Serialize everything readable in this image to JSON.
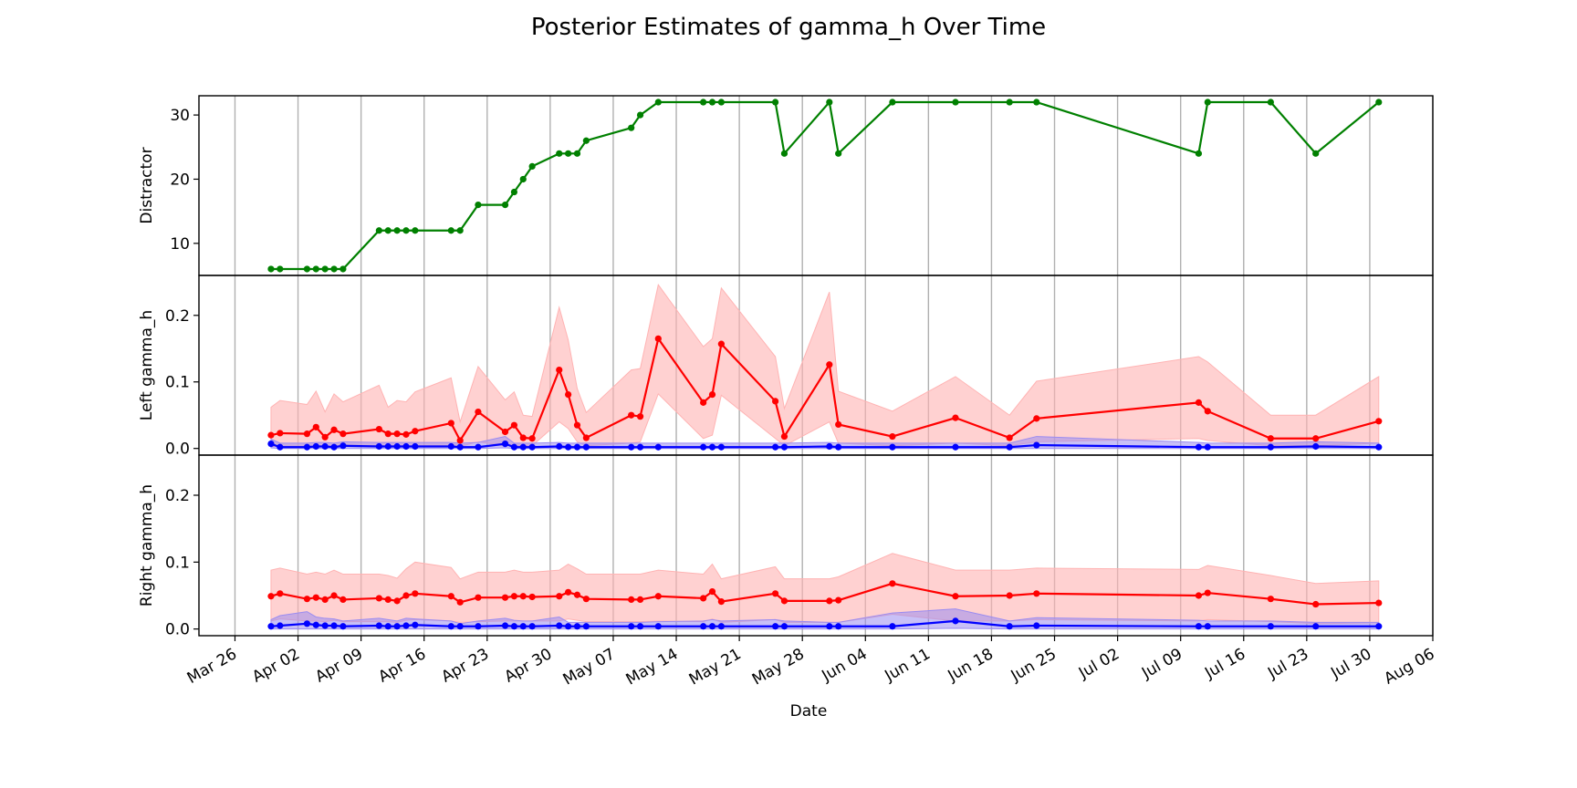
{
  "figure": {
    "title": "Posterior Estimates of gamma_h Over Time",
    "xlabel": "Date"
  },
  "colors": {
    "distractor": "#008000",
    "high": "#ff0000",
    "high_band": "#ffb3b3",
    "low": "#0000ff",
    "low_band": "#9b8cf0"
  },
  "chart_data": {
    "type": "line",
    "x_axis": {
      "scale": "date",
      "range": [
        "2025-03-22",
        "2025-08-06"
      ],
      "tick_labels": [
        "Mar 26",
        "Apr 02",
        "Apr 09",
        "Apr 16",
        "Apr 23",
        "Apr 30",
        "May 07",
        "May 14",
        "May 21",
        "May 28",
        "Jun 04",
        "Jun 11",
        "Jun 18",
        "Jun 25",
        "Jul 02",
        "Jul 09",
        "Jul 16",
        "Jul 23",
        "Jul 30",
        "Aug 06"
      ],
      "tick_dates": [
        "2025-03-26",
        "2025-04-02",
        "2025-04-09",
        "2025-04-16",
        "2025-04-23",
        "2025-04-30",
        "2025-05-07",
        "2025-05-14",
        "2025-05-21",
        "2025-05-28",
        "2025-06-04",
        "2025-06-11",
        "2025-06-18",
        "2025-06-25",
        "2025-07-02",
        "2025-07-09",
        "2025-07-16",
        "2025-07-23",
        "2025-07-30",
        "2025-08-06"
      ],
      "grid": true
    },
    "dates": [
      "2025-03-30",
      "2025-03-31",
      "2025-04-03",
      "2025-04-04",
      "2025-04-05",
      "2025-04-06",
      "2025-04-07",
      "2025-04-11",
      "2025-04-12",
      "2025-04-13",
      "2025-04-14",
      "2025-04-15",
      "2025-04-19",
      "2025-04-20",
      "2025-04-22",
      "2025-04-25",
      "2025-04-26",
      "2025-04-27",
      "2025-04-28",
      "2025-05-01",
      "2025-05-02",
      "2025-05-03",
      "2025-05-04",
      "2025-05-09",
      "2025-05-10",
      "2025-05-12",
      "2025-05-17",
      "2025-05-18",
      "2025-05-19",
      "2025-05-25",
      "2025-05-26",
      "2025-05-31",
      "2025-06-01",
      "2025-06-07",
      "2025-06-14",
      "2025-06-20",
      "2025-06-23",
      "2025-07-11",
      "2025-07-12",
      "2025-07-19",
      "2025-07-24",
      "2025-07-31"
    ],
    "panels": [
      {
        "ylabel": "Distractor",
        "ylim": [
          5,
          33
        ],
        "yticks": [
          10,
          20,
          30
        ],
        "series": [
          {
            "values": [
              6,
              6,
              6,
              6,
              6,
              6,
              6,
              12,
              12,
              12,
              12,
              12,
              12,
              12,
              16,
              16,
              18,
              20,
              22,
              24,
              24,
              24,
              26,
              28,
              30,
              32,
              32,
              32,
              32,
              32,
              24,
              32,
              24,
              32,
              32,
              32,
              32,
              24,
              32,
              32,
              24,
              32
            ]
          }
        ]
      },
      {
        "ylabel": "Left gamma_h",
        "ylim": [
          -0.01,
          0.26
        ],
        "yticks": [
          0.0,
          0.1,
          0.2
        ],
        "series": [
          {
            "values": [
              0.02,
              0.023,
              0.022,
              0.032,
              0.017,
              0.028,
              0.022,
              0.029,
              0.022,
              0.022,
              0.021,
              0.026,
              0.038,
              0.012,
              0.055,
              0.025,
              0.035,
              0.016,
              0.015,
              0.118,
              0.081,
              0.035,
              0.016,
              0.05,
              0.048,
              0.165,
              0.069,
              0.081,
              0.157,
              0.071,
              0.018,
              0.126,
              0.036,
              0.018,
              0.046,
              0.016,
              0.045,
              0.069,
              0.056,
              0.015,
              0.015,
              0.041
            ],
            "lower": [
              0.003,
              0.003,
              0.003,
              0.003,
              0.003,
              0.003,
              0.003,
              0.004,
              0.004,
              0.004,
              0.004,
              0.004,
              0.004,
              0.003,
              0.01,
              0.004,
              0.005,
              0.004,
              0.004,
              0.04,
              0.03,
              0.01,
              0.004,
              0.008,
              0.01,
              0.082,
              0.015,
              0.02,
              0.08,
              0.015,
              0.004,
              0.04,
              0.008,
              0.004,
              0.008,
              0.004,
              0.01,
              0.015,
              0.012,
              0.004,
              0.004,
              0.008
            ],
            "upper": [
              0.062,
              0.072,
              0.066,
              0.086,
              0.055,
              0.082,
              0.07,
              0.095,
              0.062,
              0.072,
              0.07,
              0.085,
              0.106,
              0.04,
              0.123,
              0.073,
              0.085,
              0.05,
              0.048,
              0.212,
              0.163,
              0.09,
              0.054,
              0.118,
              0.12,
              0.246,
              0.153,
              0.165,
              0.241,
              0.138,
              0.06,
              0.235,
              0.086,
              0.056,
              0.108,
              0.05,
              0.101,
              0.138,
              0.13,
              0.05,
              0.05,
              0.108
            ]
          },
          {
            "values": [
              0.007,
              0.002,
              0.002,
              0.003,
              0.003,
              0.002,
              0.004,
              0.003,
              0.003,
              0.003,
              0.003,
              0.003,
              0.003,
              0.002,
              0.002,
              0.007,
              0.002,
              0.002,
              0.002,
              0.003,
              0.002,
              0.002,
              0.002,
              0.002,
              0.002,
              0.002,
              0.002,
              0.002,
              0.002,
              0.002,
              0.002,
              0.003,
              0.002,
              0.002,
              0.002,
              0.002,
              0.005,
              0.002,
              0.002,
              0.002,
              0.003,
              0.002
            ],
            "lower": [
              0.001,
              0.0,
              0.0,
              0.0,
              0.0,
              0.0,
              0.0,
              0.0,
              0.0,
              0.0,
              0.0,
              0.0,
              0.0,
              0.0,
              0.0,
              0.001,
              0.0,
              0.0,
              0.0,
              0.0,
              0.0,
              0.0,
              0.0,
              0.0,
              0.0,
              0.0,
              0.0,
              0.0,
              0.0,
              0.0,
              0.0,
              0.0,
              0.0,
              0.0,
              0.0,
              0.0,
              0.0,
              0.0,
              0.0,
              0.0,
              0.0,
              0.0
            ],
            "upper": [
              0.014,
              0.008,
              0.008,
              0.009,
              0.009,
              0.008,
              0.01,
              0.009,
              0.009,
              0.009,
              0.009,
              0.009,
              0.009,
              0.008,
              0.009,
              0.018,
              0.008,
              0.008,
              0.008,
              0.009,
              0.008,
              0.008,
              0.008,
              0.008,
              0.008,
              0.008,
              0.008,
              0.008,
              0.008,
              0.008,
              0.008,
              0.009,
              0.008,
              0.008,
              0.008,
              0.008,
              0.018,
              0.009,
              0.008,
              0.008,
              0.01,
              0.008
            ]
          }
        ]
      },
      {
        "ylabel": "Right gamma_h",
        "ylim": [
          -0.01,
          0.26
        ],
        "yticks": [
          0.0,
          0.1,
          0.2
        ],
        "series": [
          {
            "values": [
              0.049,
              0.053,
              0.045,
              0.047,
              0.044,
              0.05,
              0.044,
              0.046,
              0.044,
              0.042,
              0.05,
              0.053,
              0.049,
              0.04,
              0.047,
              0.047,
              0.049,
              0.049,
              0.048,
              0.049,
              0.055,
              0.051,
              0.045,
              0.044,
              0.044,
              0.049,
              0.046,
              0.056,
              0.041,
              0.053,
              0.042,
              0.042,
              0.043,
              0.068,
              0.049,
              0.05,
              0.053,
              0.05,
              0.054,
              0.045,
              0.037,
              0.039
            ],
            "lower": [
              0.012,
              0.015,
              0.012,
              0.012,
              0.011,
              0.013,
              0.011,
              0.011,
              0.011,
              0.01,
              0.013,
              0.014,
              0.012,
              0.01,
              0.011,
              0.012,
              0.012,
              0.012,
              0.012,
              0.012,
              0.015,
              0.013,
              0.011,
              0.011,
              0.011,
              0.012,
              0.011,
              0.015,
              0.01,
              0.014,
              0.01,
              0.01,
              0.01,
              0.022,
              0.012,
              0.012,
              0.014,
              0.012,
              0.014,
              0.011,
              0.008,
              0.009
            ],
            "upper": [
              0.088,
              0.091,
              0.082,
              0.085,
              0.082,
              0.088,
              0.082,
              0.082,
              0.08,
              0.076,
              0.09,
              0.1,
              0.092,
              0.075,
              0.085,
              0.085,
              0.088,
              0.085,
              0.085,
              0.088,
              0.097,
              0.09,
              0.082,
              0.082,
              0.082,
              0.088,
              0.082,
              0.097,
              0.075,
              0.093,
              0.075,
              0.075,
              0.078,
              0.113,
              0.088,
              0.088,
              0.091,
              0.089,
              0.095,
              0.08,
              0.068,
              0.072
            ]
          },
          {
            "values": [
              0.004,
              0.005,
              0.008,
              0.006,
              0.005,
              0.005,
              0.004,
              0.005,
              0.004,
              0.004,
              0.005,
              0.006,
              0.004,
              0.004,
              0.004,
              0.005,
              0.004,
              0.004,
              0.004,
              0.005,
              0.004,
              0.004,
              0.004,
              0.004,
              0.004,
              0.004,
              0.004,
              0.004,
              0.004,
              0.004,
              0.004,
              0.004,
              0.004,
              0.004,
              0.012,
              0.004,
              0.005,
              0.004,
              0.004,
              0.004,
              0.004,
              0.004
            ],
            "lower": [
              0.0,
              0.0,
              0.0,
              0.0,
              0.0,
              0.0,
              0.0,
              0.0,
              0.0,
              0.0,
              0.0,
              0.0,
              0.0,
              0.0,
              0.0,
              0.0,
              0.0,
              0.0,
              0.0,
              0.0,
              0.0,
              0.0,
              0.0,
              0.0,
              0.0,
              0.0,
              0.0,
              0.0,
              0.0,
              0.0,
              0.0,
              0.0,
              0.0,
              0.0,
              0.001,
              0.0,
              0.0,
              0.0,
              0.0,
              0.0,
              0.0,
              0.0
            ],
            "upper": [
              0.014,
              0.02,
              0.026,
              0.018,
              0.016,
              0.015,
              0.012,
              0.016,
              0.014,
              0.012,
              0.016,
              0.015,
              0.012,
              0.008,
              0.012,
              0.016,
              0.013,
              0.012,
              0.012,
              0.018,
              0.01,
              0.01,
              0.01,
              0.01,
              0.01,
              0.011,
              0.012,
              0.014,
              0.012,
              0.014,
              0.012,
              0.01,
              0.01,
              0.024,
              0.03,
              0.012,
              0.017,
              0.013,
              0.012,
              0.012,
              0.01,
              0.01
            ]
          }
        ]
      }
    ]
  }
}
